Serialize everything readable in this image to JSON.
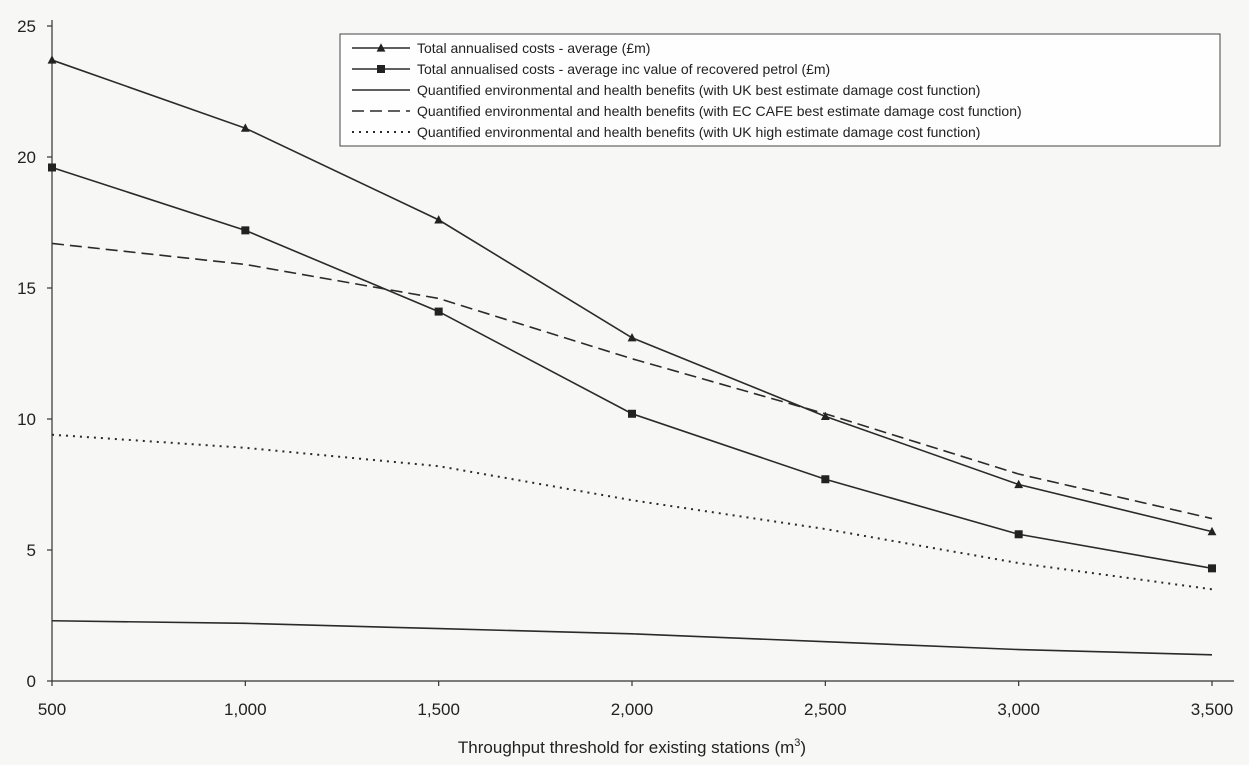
{
  "chart_data": {
    "type": "line",
    "title": "",
    "xlabel": "Throughput threshold for existing stations (m",
    "xlabel_sup": "3",
    "xlabel_end": ")",
    "ylabel": "",
    "x": [
      500,
      1000,
      1500,
      2000,
      2500,
      3000,
      3500
    ],
    "x_tick_labels": [
      "500",
      "1,000",
      "1,500",
      "2,000",
      "2,500",
      "3,000",
      "3,500"
    ],
    "y_ticks": [
      0,
      5,
      10,
      15,
      20,
      25
    ],
    "y_tick_labels": [
      "0",
      "5",
      "10",
      "15",
      "20",
      "25"
    ],
    "xlim": [
      500,
      3500
    ],
    "ylim": [
      0,
      25
    ],
    "grid": false,
    "legend_position": "top-right",
    "series": [
      {
        "name": "Total annualised costs - average (£m)",
        "values": [
          23.7,
          21.1,
          17.6,
          13.1,
          10.1,
          7.5,
          5.7
        ],
        "color": "#2a2a2a",
        "style": "solid",
        "marker": "triangle"
      },
      {
        "name": "Total annualised costs - average inc value of recovered petrol (£m)",
        "values": [
          19.6,
          17.2,
          14.1,
          10.2,
          7.7,
          5.6,
          4.3
        ],
        "color": "#2a2a2a",
        "style": "solid",
        "marker": "square"
      },
      {
        "name": "Quantified environmental and health benefits (with UK best estimate damage cost function)",
        "values": [
          2.3,
          2.2,
          2.0,
          1.8,
          1.5,
          1.2,
          1.0
        ],
        "color": "#2a2a2a",
        "style": "solid",
        "marker": "none"
      },
      {
        "name": "Quantified environmental and health benefits (with EC CAFE best estimate damage cost function)",
        "values": [
          16.7,
          15.9,
          14.6,
          12.3,
          10.2,
          7.9,
          6.2
        ],
        "color": "#2a2a2a",
        "style": "dashed",
        "marker": "none"
      },
      {
        "name": "Quantified environmental and health benefits (with UK high estimate damage cost function)",
        "values": [
          9.4,
          8.9,
          8.2,
          6.9,
          5.8,
          4.5,
          3.5
        ],
        "color": "#2a2a2a",
        "style": "dotted",
        "marker": "none"
      }
    ]
  }
}
